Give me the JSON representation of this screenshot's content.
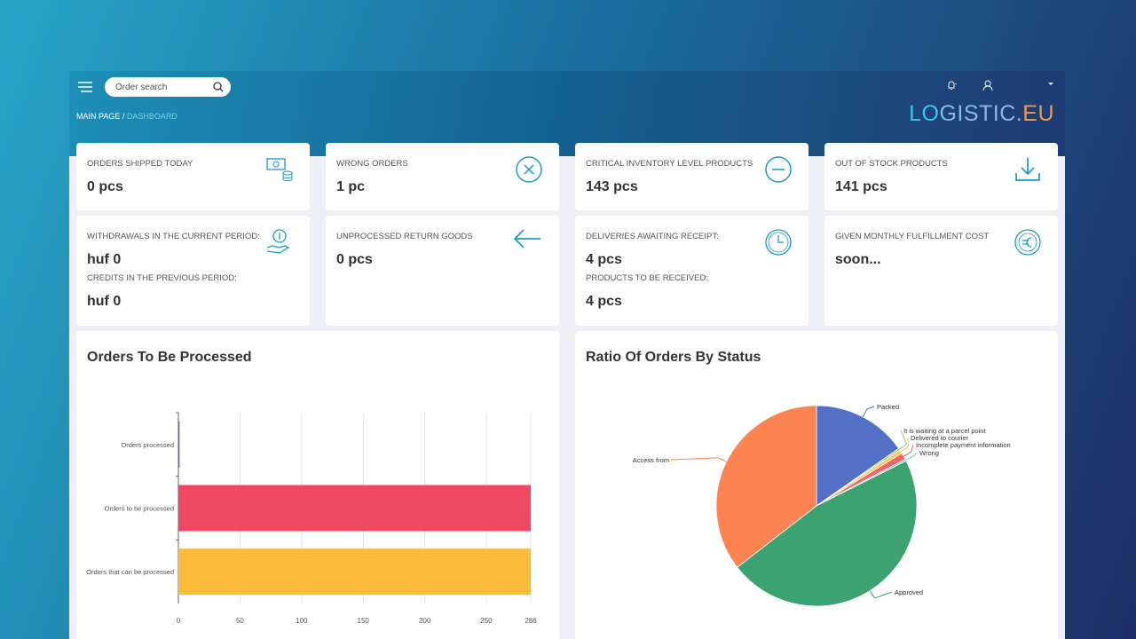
{
  "header": {
    "search_placeholder": "Order search",
    "breadcrumb": [
      "MAIN PAGE",
      "DASHBOARD"
    ],
    "logo": [
      "LO",
      "GISTIC.",
      "EU"
    ]
  },
  "cards": [
    {
      "items": [
        {
          "label": "ORDERS SHIPPED TODAY",
          "value": "0 pcs"
        }
      ]
    },
    {
      "items": [
        {
          "label": "WRONG ORDERS",
          "value": "1 pc"
        }
      ]
    },
    {
      "items": [
        {
          "label": "CRITICAL INVENTORY LEVEL PRODUCTS",
          "value": "143 pcs"
        }
      ]
    },
    {
      "items": [
        {
          "label": "OUT OF STOCK PRODUCTS",
          "value": "141 pcs"
        }
      ]
    },
    {
      "items": [
        {
          "label": "WITHDRAWALS IN THE CURRENT PERIOD:",
          "value": "huf 0"
        },
        {
          "label": "CREDITS IN THE PREVIOUS PERIOD:",
          "value": "huf 0"
        }
      ]
    },
    {
      "items": [
        {
          "label": "UNPROCESSED RETURN GOODS",
          "value": "0 pcs"
        }
      ]
    },
    {
      "items": [
        {
          "label": "DELIVERIES AWAITING RECEIPT:",
          "value": "4 pcs"
        },
        {
          "label": "PRODUCTS TO BE RECEIVED:",
          "value": "4 pcs"
        }
      ]
    },
    {
      "items": [
        {
          "label": "GIVEN MONTHLY FULFILLMENT COST",
          "value": "soon..."
        }
      ]
    }
  ],
  "chart_data": [
    {
      "type": "bar",
      "orientation": "horizontal",
      "title": "Orders To Be Processed",
      "categories": [
        "Orders processed",
        "Orders to be processed",
        "Orders that can be processed"
      ],
      "values": [
        1,
        286,
        286
      ],
      "colors": [
        "#5470c6",
        "#ee4862",
        "#fbbc3a"
      ],
      "xlim": [
        0,
        286
      ],
      "xticks": [
        0,
        50,
        100,
        150,
        200,
        250,
        286
      ],
      "grid": true
    },
    {
      "type": "pie",
      "title": "Ratio Of Orders By Status",
      "categories": [
        "Packed",
        "It is waiting at a parcel point",
        "Delivered to courier",
        "Incomplete payment information",
        "Wrong",
        "Approved",
        "Access from"
      ],
      "values": [
        15.3,
        0.3,
        0.6,
        1.1,
        0.3,
        46.9,
        35.5
      ],
      "colors": [
        "#5470c6",
        "#91cc75",
        "#fac858",
        "#ee6666",
        "#73c0de",
        "#3ba272",
        "#fc8452"
      ]
    }
  ]
}
